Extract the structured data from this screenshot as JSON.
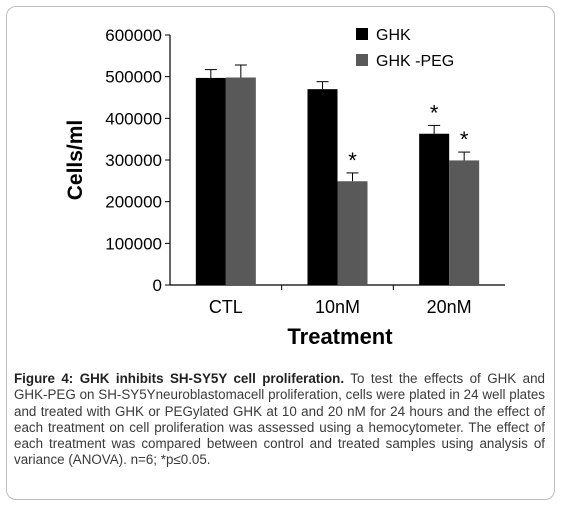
{
  "chart_data": {
    "type": "bar",
    "categories": [
      "CTL",
      "10nM",
      "20nM"
    ],
    "series": [
      {
        "name": "GHK",
        "values": [
          497000,
          470000,
          363000
        ],
        "errors": [
          20000,
          18000,
          20000
        ],
        "significance": [
          "",
          "",
          "*"
        ],
        "color": "#000000"
      },
      {
        "name": "GHK -PEG",
        "values": [
          498000,
          249000,
          299000
        ],
        "errors": [
          30000,
          20000,
          20000
        ],
        "significance": [
          "",
          "*",
          "*"
        ],
        "color": "#595959"
      }
    ],
    "ylim": [
      0,
      600000
    ],
    "yticks": [
      "0",
      "100000",
      "200000",
      "300000",
      "400000",
      "500000",
      "600000"
    ],
    "xlabel": "Treatment",
    "ylabel": "Cells/ml",
    "legend_position": "top-right",
    "grid": false
  },
  "caption": {
    "lead": "Figure 4: GHK inhibits SH-SY5Y cell proliferation.",
    "body": " To test the effects of GHK and GHK-PEG on SH-SY5Yneuroblastomacell proliferation, cells were plated in 24 well plates and treated with GHK or PEGylated GHK at 10 and 20 nM for 24 hours and the effect of each treatment on cell proliferation was assessed using a hemocytometer. The effect of each treatment was compared between control and treated samples using analysis of variance (ANOVA). n=6; *p≤0.05."
  }
}
